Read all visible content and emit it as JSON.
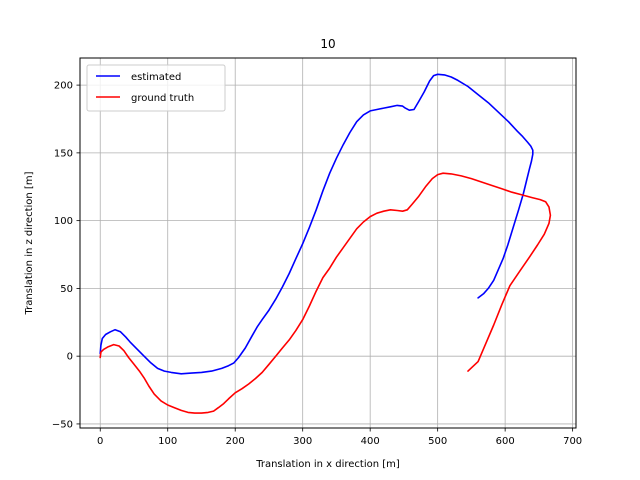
{
  "chart_data": {
    "type": "line",
    "title": "10",
    "xlabel": "Translation in x direction [m]",
    "ylabel": "Translation in z direction [m]",
    "xlim": [
      -30,
      705
    ],
    "ylim": [
      -53,
      220
    ],
    "xticks": [
      0,
      100,
      200,
      300,
      400,
      500,
      600,
      700
    ],
    "yticks": [
      -50,
      0,
      50,
      100,
      150,
      200
    ],
    "grid": true,
    "legend_position": "upper-left",
    "series": [
      {
        "name": "estimated",
        "color": "#0000ff",
        "points": [
          [
            0,
            2
          ],
          [
            1,
            8
          ],
          [
            3,
            13
          ],
          [
            8,
            16
          ],
          [
            15,
            18
          ],
          [
            22,
            19.5
          ],
          [
            30,
            18
          ],
          [
            38,
            14
          ],
          [
            45,
            10
          ],
          [
            55,
            5
          ],
          [
            65,
            0
          ],
          [
            75,
            -5
          ],
          [
            85,
            -9
          ],
          [
            95,
            -11
          ],
          [
            105,
            -12
          ],
          [
            120,
            -13
          ],
          [
            135,
            -12.5
          ],
          [
            150,
            -12
          ],
          [
            165,
            -11
          ],
          [
            180,
            -9
          ],
          [
            190,
            -7
          ],
          [
            198,
            -5
          ],
          [
            205,
            -1
          ],
          [
            215,
            6
          ],
          [
            225,
            15
          ],
          [
            233,
            22
          ],
          [
            240,
            27
          ],
          [
            250,
            34
          ],
          [
            260,
            42
          ],
          [
            270,
            51
          ],
          [
            280,
            61
          ],
          [
            290,
            72
          ],
          [
            300,
            83
          ],
          [
            310,
            95
          ],
          [
            320,
            108
          ],
          [
            330,
            122
          ],
          [
            340,
            135
          ],
          [
            350,
            146
          ],
          [
            360,
            156
          ],
          [
            370,
            165
          ],
          [
            380,
            173
          ],
          [
            390,
            178
          ],
          [
            400,
            181
          ],
          [
            410,
            182
          ],
          [
            420,
            183
          ],
          [
            430,
            184
          ],
          [
            440,
            185
          ],
          [
            448,
            184.5
          ],
          [
            452,
            183
          ],
          [
            458,
            181.5
          ],
          [
            465,
            182
          ],
          [
            472,
            188
          ],
          [
            480,
            195
          ],
          [
            488,
            203
          ],
          [
            494,
            207
          ],
          [
            500,
            208
          ],
          [
            510,
            207.5
          ],
          [
            520,
            206
          ],
          [
            530,
            203.5
          ],
          [
            545,
            199
          ],
          [
            560,
            193
          ],
          [
            575,
            187
          ],
          [
            590,
            180
          ],
          [
            605,
            173
          ],
          [
            618,
            166
          ],
          [
            626,
            162
          ],
          [
            633,
            158
          ],
          [
            638,
            155
          ],
          [
            641,
            152
          ],
          [
            641,
            149
          ],
          [
            639,
            144
          ],
          [
            636,
            138
          ],
          [
            632,
            130
          ],
          [
            627,
            120
          ],
          [
            620,
            108
          ],
          [
            612,
            95
          ],
          [
            604,
            82
          ],
          [
            597,
            72
          ],
          [
            590,
            64
          ],
          [
            583,
            56
          ],
          [
            575,
            50
          ],
          [
            568,
            46
          ],
          [
            560,
            43
          ]
        ]
      },
      {
        "name": "ground truth",
        "color": "#ff0000",
        "points": [
          [
            0,
            -1
          ],
          [
            1,
            3
          ],
          [
            5,
            5
          ],
          [
            12,
            7
          ],
          [
            20,
            8.5
          ],
          [
            28,
            7.5
          ],
          [
            35,
            4
          ],
          [
            42,
            -1
          ],
          [
            50,
            -6
          ],
          [
            58,
            -11
          ],
          [
            65,
            -16
          ],
          [
            72,
            -22
          ],
          [
            80,
            -28
          ],
          [
            90,
            -33
          ],
          [
            100,
            -36
          ],
          [
            110,
            -38
          ],
          [
            120,
            -40
          ],
          [
            130,
            -41.5
          ],
          [
            140,
            -42
          ],
          [
            150,
            -42
          ],
          [
            160,
            -41.5
          ],
          [
            168,
            -40.5
          ],
          [
            175,
            -38
          ],
          [
            183,
            -35
          ],
          [
            190,
            -31.5
          ],
          [
            200,
            -27
          ],
          [
            210,
            -24
          ],
          [
            220,
            -20.5
          ],
          [
            230,
            -16.5
          ],
          [
            240,
            -12
          ],
          [
            250,
            -6
          ],
          [
            260,
            0
          ],
          [
            270,
            6
          ],
          [
            280,
            12
          ],
          [
            290,
            19
          ],
          [
            300,
            27
          ],
          [
            310,
            37
          ],
          [
            320,
            48
          ],
          [
            330,
            58
          ],
          [
            340,
            65
          ],
          [
            350,
            73
          ],
          [
            360,
            80
          ],
          [
            370,
            87
          ],
          [
            380,
            94
          ],
          [
            390,
            99
          ],
          [
            400,
            103
          ],
          [
            410,
            105.5
          ],
          [
            420,
            107
          ],
          [
            430,
            108
          ],
          [
            440,
            107.5
          ],
          [
            448,
            107
          ],
          [
            455,
            108
          ],
          [
            462,
            112
          ],
          [
            472,
            118
          ],
          [
            482,
            125
          ],
          [
            492,
            131
          ],
          [
            500,
            134
          ],
          [
            508,
            135
          ],
          [
            520,
            134.5
          ],
          [
            535,
            133
          ],
          [
            550,
            131
          ],
          [
            565,
            128.5
          ],
          [
            580,
            126
          ],
          [
            595,
            123.5
          ],
          [
            610,
            121
          ],
          [
            625,
            119
          ],
          [
            640,
            117
          ],
          [
            652,
            115.5
          ],
          [
            660,
            114
          ],
          [
            665,
            110
          ],
          [
            667,
            104
          ],
          [
            665,
            98
          ],
          [
            658,
            90
          ],
          [
            648,
            82
          ],
          [
            636,
            73
          ],
          [
            622,
            63
          ],
          [
            607,
            52
          ],
          [
            595,
            38
          ],
          [
            583,
            23
          ],
          [
            572,
            10
          ],
          [
            560,
            -4
          ],
          [
            545,
            -11
          ]
        ]
      }
    ]
  }
}
